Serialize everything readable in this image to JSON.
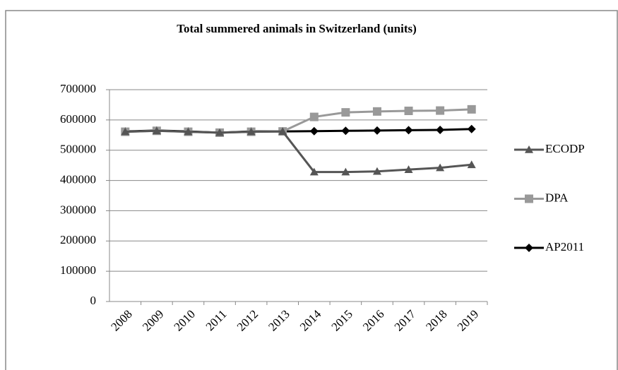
{
  "chart_data": {
    "type": "line",
    "title": "Total summered animals in Switzerland (units)",
    "categories": [
      "2008",
      "2009",
      "2010",
      "2011",
      "2012",
      "2013",
      "2014",
      "2015",
      "2016",
      "2017",
      "2018",
      "2019"
    ],
    "series": [
      {
        "name": "ECODP",
        "color": "#555555",
        "marker": "triangle",
        "values": [
          561000,
          564000,
          561000,
          558000,
          561000,
          562000,
          428000,
          428000,
          430000,
          436000,
          442000,
          452000
        ]
      },
      {
        "name": "DPA",
        "color": "#999999",
        "marker": "square",
        "values": [
          561000,
          564000,
          561000,
          558000,
          561000,
          562000,
          610000,
          625000,
          628000,
          630000,
          631000,
          635000
        ]
      },
      {
        "name": "AP2011",
        "color": "#000000",
        "marker": "diamond",
        "values": [
          562000,
          565000,
          562000,
          558000,
          562000,
          562000,
          563000,
          564000,
          565000,
          566000,
          567000,
          570000
        ]
      }
    ],
    "ylim": [
      0,
      700000
    ],
    "yticks": [
      0,
      100000,
      200000,
      300000,
      400000,
      500000,
      600000,
      700000
    ],
    "grid": true,
    "legend": "right"
  }
}
